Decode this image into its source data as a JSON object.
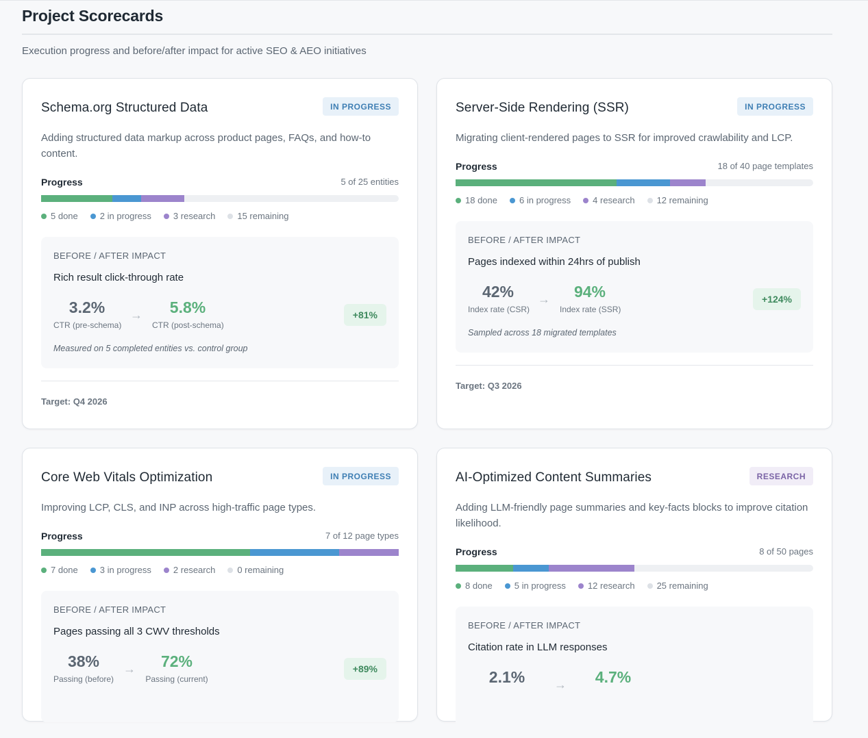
{
  "page": {
    "title": "Project Scorecards",
    "subtitle": "Execution progress and before/after impact for active SEO & AEO initiatives"
  },
  "cards": [
    {
      "title": "Schema.org Structured Data",
      "status": "IN PROGRESS",
      "description": "Adding structured data markup across product pages, FAQs, and how-to content.",
      "progress_label": "Progress",
      "progress_count": "5 of 25 entities",
      "progress": {
        "done": 5,
        "in_progress": 2,
        "research": 3,
        "remaining": 15
      },
      "legend": [
        "5 done",
        "2 in progress",
        "3 research",
        "15 remaining"
      ],
      "impact": {
        "eyebrow": "BEFORE / AFTER IMPACT",
        "metric": "Rich result click-through rate",
        "before_value": "3.2%",
        "before_caption": "CTR (pre-schema)",
        "after_value": "5.8%",
        "after_caption": "CTR (post-schema)",
        "delta": "+81%",
        "note": "Measured on 5 completed entities vs. control group"
      },
      "target": "Target: Q4 2026"
    },
    {
      "title": "Server-Side Rendering (SSR)",
      "status": "IN PROGRESS",
      "description": "Migrating client-rendered pages to SSR for improved crawlability and LCP.",
      "progress_label": "Progress",
      "progress_count": "18 of 40 page templates",
      "progress": {
        "done": 18,
        "in_progress": 6,
        "research": 4,
        "remaining": 12
      },
      "legend": [
        "18 done",
        "6 in progress",
        "4 research",
        "12 remaining"
      ],
      "impact": {
        "eyebrow": "BEFORE / AFTER IMPACT",
        "metric": "Pages indexed within 24hrs of publish",
        "before_value": "42%",
        "before_caption": "Index rate (CSR)",
        "after_value": "94%",
        "after_caption": "Index rate (SSR)",
        "delta": "+124%",
        "note": "Sampled across 18 migrated templates"
      },
      "target": "Target: Q3 2026"
    },
    {
      "title": "Core Web Vitals Optimization",
      "status": "IN PROGRESS",
      "description": "Improving LCP, CLS, and INP across high-traffic page types.",
      "progress_label": "Progress",
      "progress_count": "7 of 12 page types",
      "progress": {
        "done": 7,
        "in_progress": 3,
        "research": 2,
        "remaining": 0
      },
      "legend": [
        "7 done",
        "3 in progress",
        "2 research",
        "0 remaining"
      ],
      "impact": {
        "eyebrow": "BEFORE / AFTER IMPACT",
        "metric": "Pages passing all 3 CWV thresholds",
        "before_value": "38%",
        "before_caption": "Passing (before)",
        "after_value": "72%",
        "after_caption": "Passing (current)",
        "delta": "+89%",
        "note": ""
      },
      "target": ""
    },
    {
      "title": "AI-Optimized Content Summaries",
      "status": "RESEARCH",
      "description": "Adding LLM-friendly page summaries and key-facts blocks to improve citation likelihood.",
      "progress_label": "Progress",
      "progress_count": "8 of 50 pages",
      "progress": {
        "done": 8,
        "in_progress": 5,
        "research": 12,
        "remaining": 25
      },
      "legend": [
        "8 done",
        "5 in progress",
        "12 research",
        "25 remaining"
      ],
      "impact": {
        "eyebrow": "BEFORE / AFTER IMPACT",
        "metric": "Citation rate in LLM responses",
        "before_value": "2.1%",
        "before_caption": "",
        "after_value": "4.7%",
        "after_caption": "",
        "delta": "",
        "note": ""
      },
      "target": ""
    }
  ],
  "colors": {
    "done": "#5bb07c",
    "in_progress": "#4a97d2",
    "research": "#9c84cc",
    "remaining": "#eef0f3"
  }
}
